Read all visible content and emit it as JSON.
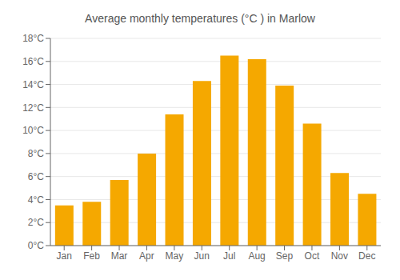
{
  "chart_data": {
    "type": "bar",
    "title": "Average monthly temperatures (°C ) in Marlow",
    "categories": [
      "Jan",
      "Feb",
      "Mar",
      "Apr",
      "May",
      "Jun",
      "Jul",
      "Aug",
      "Sep",
      "Oct",
      "Nov",
      "Dec"
    ],
    "values": [
      3.5,
      3.8,
      5.7,
      8.0,
      11.4,
      14.3,
      16.5,
      16.2,
      13.9,
      10.6,
      6.3,
      4.5
    ],
    "color": "#F5A800",
    "ylim": [
      0,
      18
    ],
    "yticks": [
      {
        "value": 0,
        "label": "0°C"
      },
      {
        "value": 2,
        "label": "2°C"
      },
      {
        "value": 4,
        "label": "4°C"
      },
      {
        "value": 6,
        "label": "6°C"
      },
      {
        "value": 8,
        "label": "8°C"
      },
      {
        "value": 10,
        "label": "10°C"
      },
      {
        "value": 12,
        "label": "12°C"
      },
      {
        "value": 14,
        "label": "14°C"
      },
      {
        "value": 16,
        "label": "16°C"
      },
      {
        "value": 18,
        "label": "18°C"
      }
    ],
    "grid": true
  }
}
